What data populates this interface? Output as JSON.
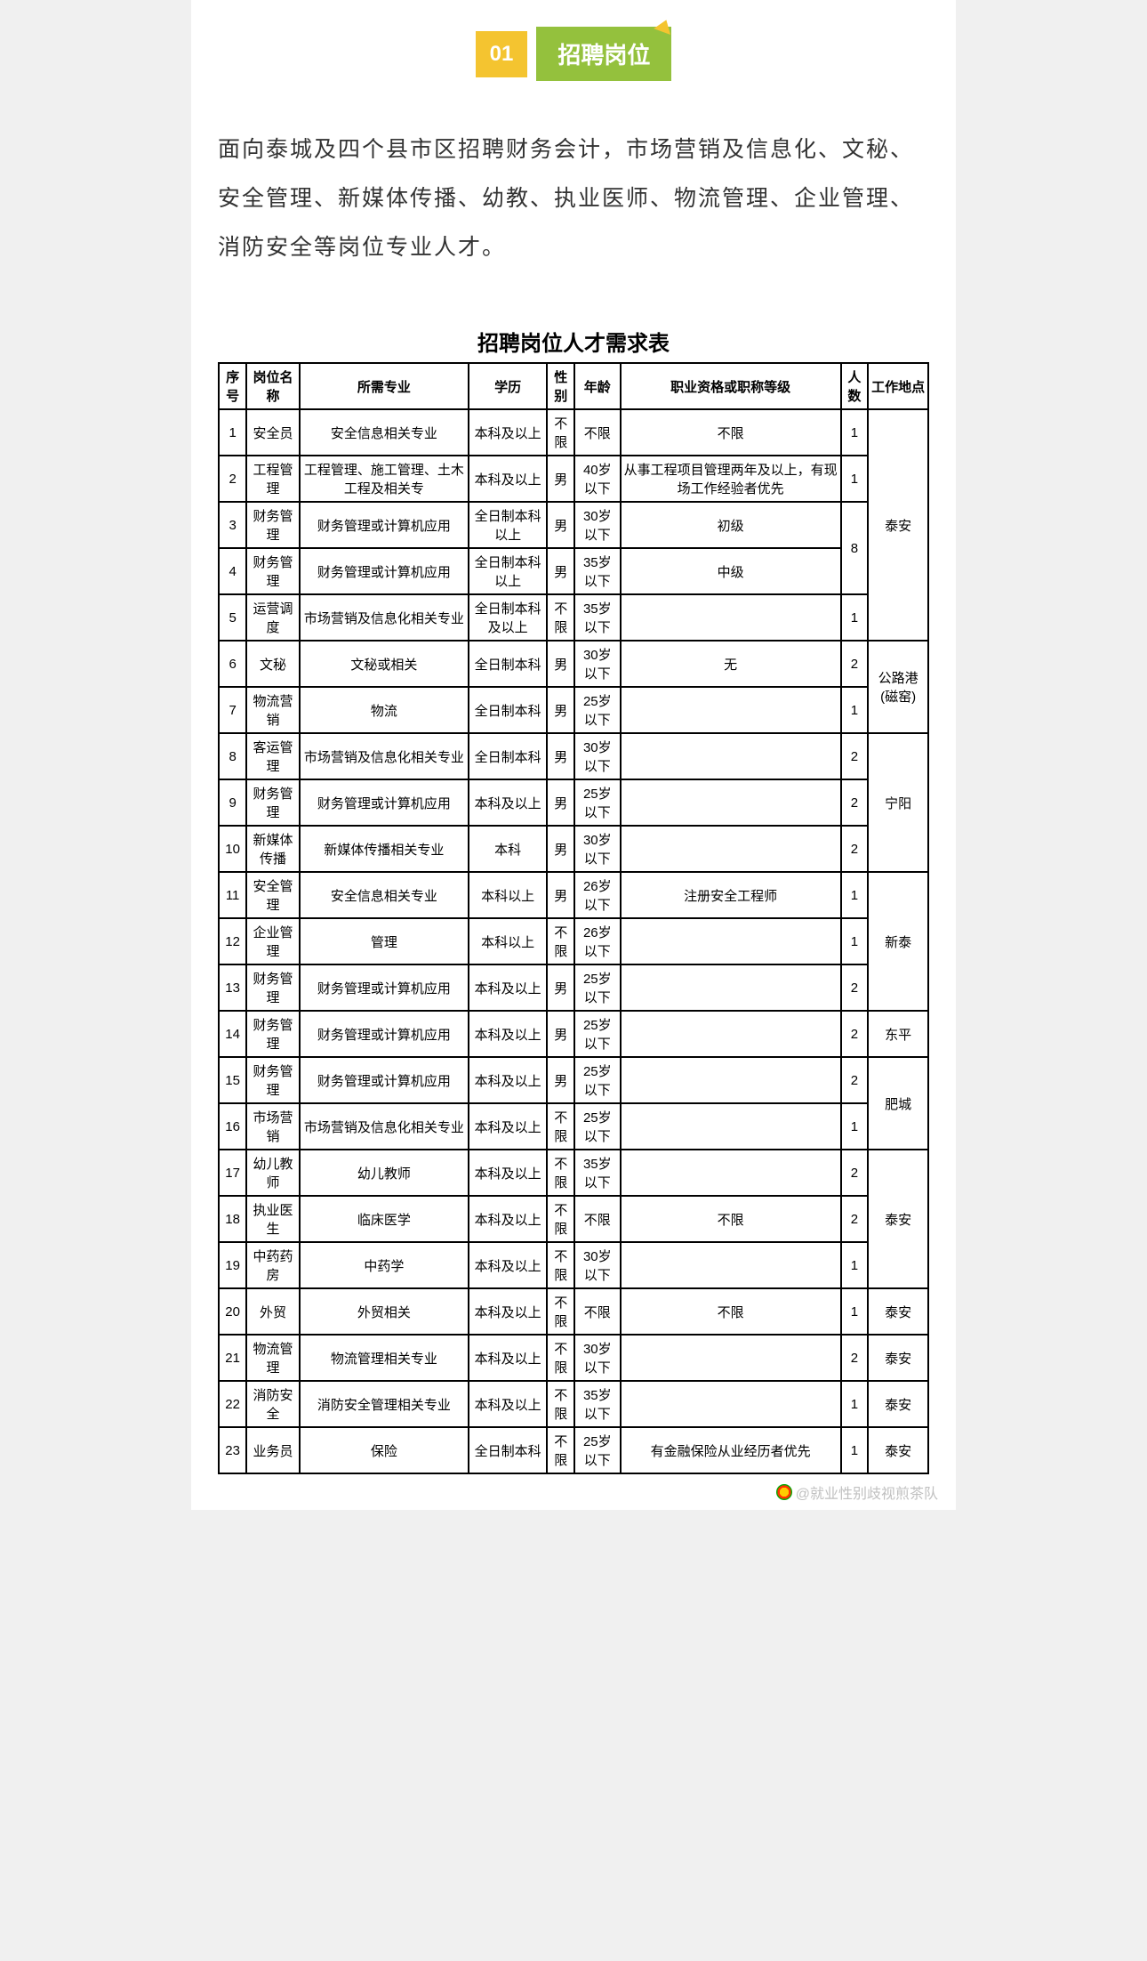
{
  "badge": {
    "num": "01",
    "title": "招聘岗位"
  },
  "intro": "面向泰城及四个县市区招聘财务会计，市场营销及信息化、文秘、安全管理、新媒体传播、幼教、执业医师、物流管理、企业管理、消防安全等岗位专业人才。",
  "table_title": "招聘岗位人才需求表",
  "columns": [
    "序号",
    "岗位名称",
    "所需专业",
    "学历",
    "性别",
    "年龄",
    "职业资格或职称等级",
    "人数",
    "工作地点"
  ],
  "rows": [
    {
      "n": "1",
      "pos": "安全员",
      "major": "安全信息相关专业",
      "edu": "本科及以上",
      "sex": "不限",
      "age": "不限",
      "qual": "不限",
      "cnt": "1",
      "loc": null
    },
    {
      "n": "2",
      "pos": "工程管理",
      "major": "工程管理、施工管理、土木工程及相关专",
      "edu": "本科及以上",
      "sex": "男",
      "age": "40岁以下",
      "qual": "从事工程项目管理两年及以上，有现场工作经验者优先",
      "cnt": "1",
      "loc": null
    },
    {
      "n": "3",
      "pos": "财务管理",
      "major": "财务管理或计算机应用",
      "edu": "全日制本科以上",
      "sex": "男",
      "age": "30岁以下",
      "qual": "初级",
      "cnt": null,
      "loc": null
    },
    {
      "n": "4",
      "pos": "财务管理",
      "major": "财务管理或计算机应用",
      "edu": "全日制本科以上",
      "sex": "男",
      "age": "35岁以下",
      "qual": "中级",
      "cnt": null,
      "loc": null
    },
    {
      "n": "5",
      "pos": "运营调度",
      "major": "市场营销及信息化相关专业",
      "edu": "全日制本科及以上",
      "sex": "不限",
      "age": "35岁以下",
      "qual": "",
      "cnt": "1",
      "loc": null
    },
    {
      "n": "6",
      "pos": "文秘",
      "major": "文秘或相关",
      "edu": "全日制本科",
      "sex": "男",
      "age": "30岁以下",
      "qual": "无",
      "cnt": "2",
      "loc": null
    },
    {
      "n": "7",
      "pos": "物流营销",
      "major": "物流",
      "edu": "全日制本科",
      "sex": "男",
      "age": "25岁以下",
      "qual": "",
      "cnt": "1",
      "loc": null
    },
    {
      "n": "8",
      "pos": "客运管理",
      "major": "市场营销及信息化相关专业",
      "edu": "全日制本科",
      "sex": "男",
      "age": "30岁以下",
      "qual": "",
      "cnt": "2",
      "loc": null
    },
    {
      "n": "9",
      "pos": "财务管理",
      "major": "财务管理或计算机应用",
      "edu": "本科及以上",
      "sex": "男",
      "age": "25岁以下",
      "qual": "",
      "cnt": "2",
      "loc": null
    },
    {
      "n": "10",
      "pos": "新媒体传播",
      "major": "新媒体传播相关专业",
      "edu": "本科",
      "sex": "男",
      "age": "30岁以下",
      "qual": "",
      "cnt": "2",
      "loc": null
    },
    {
      "n": "11",
      "pos": "安全管理",
      "major": "安全信息相关专业",
      "edu": "本科以上",
      "sex": "男",
      "age": "26岁以下",
      "qual": "注册安全工程师",
      "cnt": "1",
      "loc": null
    },
    {
      "n": "12",
      "pos": "企业管理",
      "major": "管理",
      "edu": "本科以上",
      "sex": "不限",
      "age": "26岁以下",
      "qual": "",
      "cnt": "1",
      "loc": null
    },
    {
      "n": "13",
      "pos": "财务管理",
      "major": "财务管理或计算机应用",
      "edu": "本科及以上",
      "sex": "男",
      "age": "25岁以下",
      "qual": "",
      "cnt": "2",
      "loc": null
    },
    {
      "n": "14",
      "pos": "财务管理",
      "major": "财务管理或计算机应用",
      "edu": "本科及以上",
      "sex": "男",
      "age": "25岁以下",
      "qual": "",
      "cnt": "2",
      "loc": "东平"
    },
    {
      "n": "15",
      "pos": "财务管理",
      "major": "财务管理或计算机应用",
      "edu": "本科及以上",
      "sex": "男",
      "age": "25岁以下",
      "qual": "",
      "cnt": "2",
      "loc": null
    },
    {
      "n": "16",
      "pos": "市场营销",
      "major": "市场营销及信息化相关专业",
      "edu": "本科及以上",
      "sex": "不限",
      "age": "25岁以下",
      "qual": "",
      "cnt": "1",
      "loc": null
    },
    {
      "n": "17",
      "pos": "幼儿教师",
      "major": "幼儿教师",
      "edu": "本科及以上",
      "sex": "不限",
      "age": "35岁以下",
      "qual": "",
      "cnt": "2",
      "loc": null
    },
    {
      "n": "18",
      "pos": "执业医生",
      "major": "临床医学",
      "edu": "本科及以上",
      "sex": "不限",
      "age": "不限",
      "qual": "不限",
      "cnt": "2",
      "loc": null
    },
    {
      "n": "19",
      "pos": "中药药房",
      "major": "中药学",
      "edu": "本科及以上",
      "sex": "不限",
      "age": "30岁以下",
      "qual": "",
      "cnt": "1",
      "loc": null
    },
    {
      "n": "20",
      "pos": "外贸",
      "major": "外贸相关",
      "edu": "本科及以上",
      "sex": "不限",
      "age": "不限",
      "qual": "不限",
      "cnt": "1",
      "loc": "泰安"
    },
    {
      "n": "21",
      "pos": "物流管理",
      "major": "物流管理相关专业",
      "edu": "本科及以上",
      "sex": "不限",
      "age": "30岁以下",
      "qual": "",
      "cnt": "2",
      "loc": "泰安"
    },
    {
      "n": "22",
      "pos": "消防安全",
      "major": "消防安全管理相关专业",
      "edu": "本科及以上",
      "sex": "不限",
      "age": "35岁以下",
      "qual": "",
      "cnt": "1",
      "loc": "泰安"
    },
    {
      "n": "23",
      "pos": "业务员",
      "major": "保险",
      "edu": "全日制本科",
      "sex": "不限",
      "age": "25岁以下",
      "qual": "有金融保险从业经历者优先",
      "cnt": "1",
      "loc": "泰安"
    }
  ],
  "merged_cnt_3_4": "8",
  "loc_groups": {
    "g1": "泰安",
    "g2": "公路港(磁窑)",
    "g3": "宁阳",
    "g4": "新泰",
    "g5": "肥城",
    "g6": "泰安"
  },
  "watermark": "@就业性别歧视煎茶队"
}
